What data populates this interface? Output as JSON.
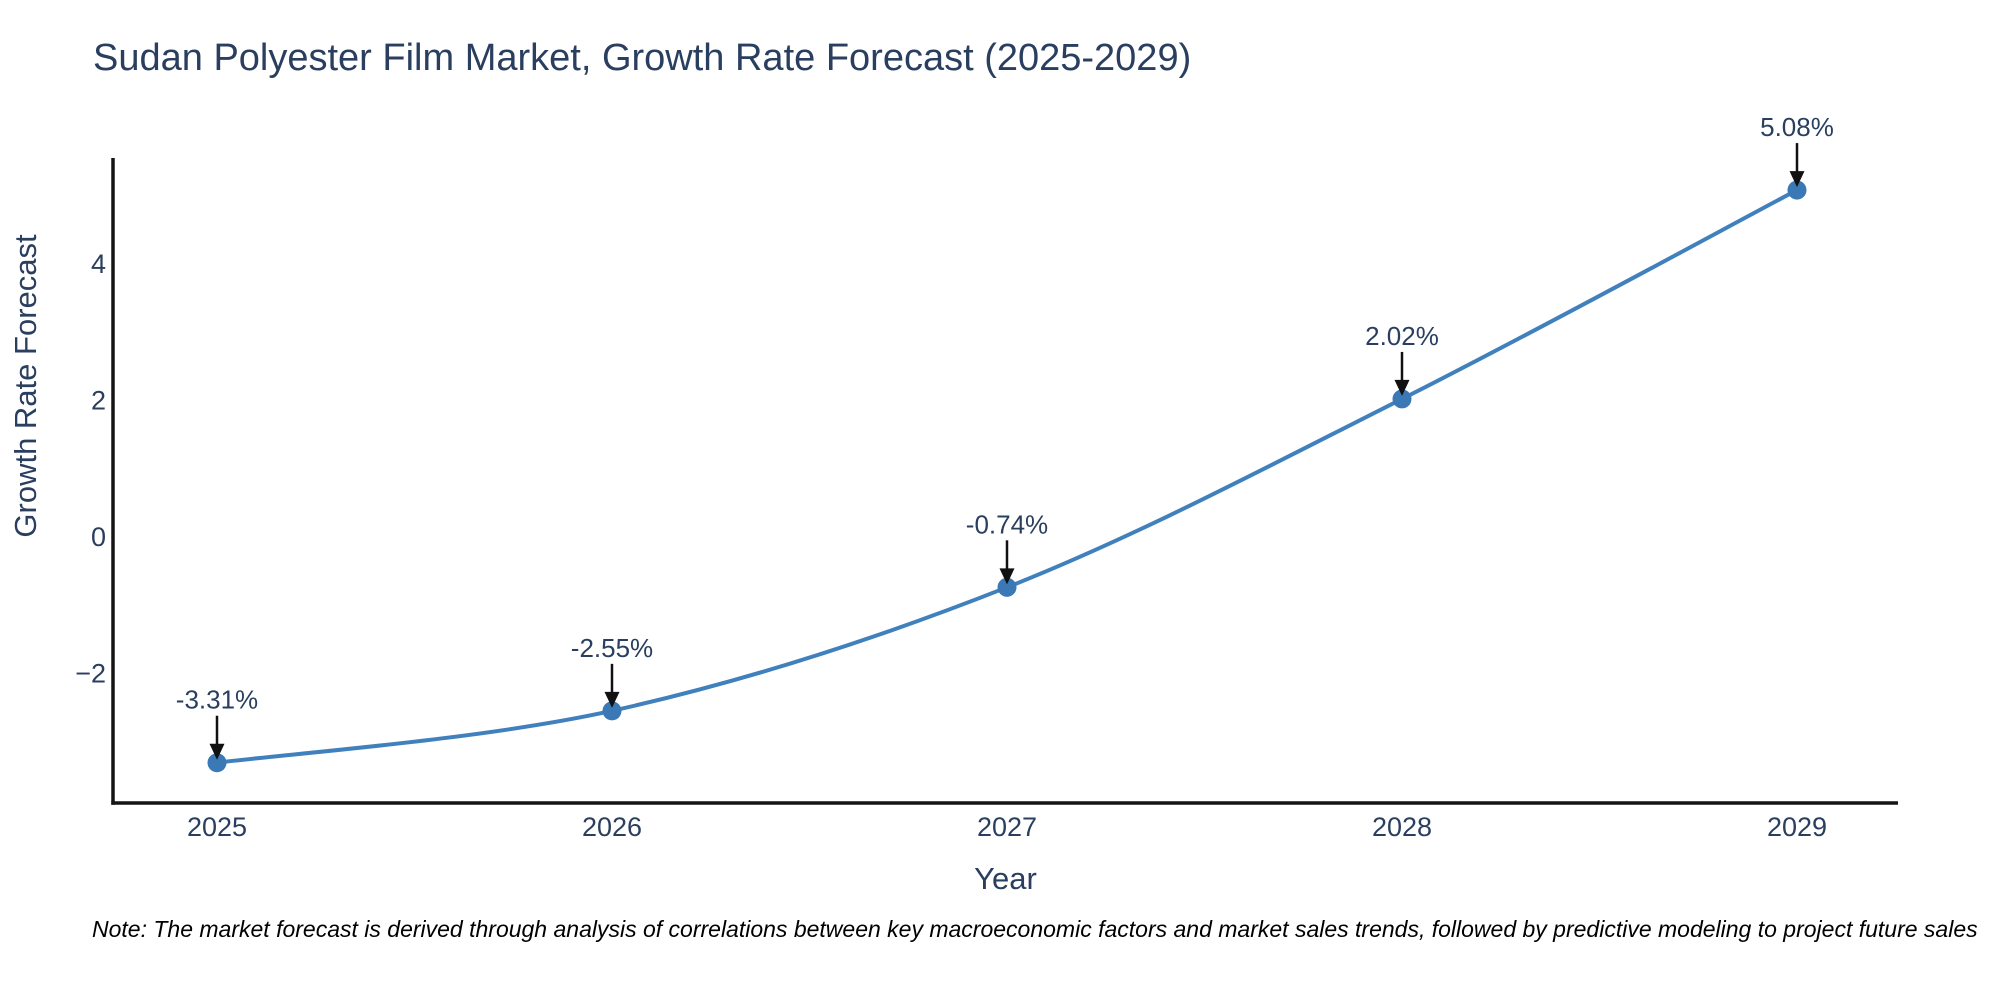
{
  "note": "Note: The market forecast is derived through analysis of correlations between key macroeconomic factors and market sales trends, followed by predictive modeling to project future sales",
  "chart_data": {
    "type": "line",
    "title": "Sudan Polyester Film Market, Growth Rate Forecast (2025-2029)",
    "xlabel": "Year",
    "ylabel": "Growth Rate Forecast",
    "categories": [
      "2025",
      "2026",
      "2027",
      "2028",
      "2029"
    ],
    "values": [
      -3.31,
      -2.55,
      -0.74,
      2.02,
      5.08
    ],
    "point_labels": [
      "-3.31%",
      "-2.55%",
      "-0.74%",
      "2.02%",
      "5.08%"
    ],
    "line_shape": "spline",
    "markers": true,
    "grid": false,
    "legend": "none",
    "ylim": [
      -3.9,
      5.55
    ],
    "y_ticks": [
      -2,
      0,
      2,
      4
    ],
    "y_tick_labels": [
      "−2",
      "0",
      "2",
      "4"
    ],
    "colors": {
      "line": "#4081bd",
      "marker": "#3a79b5",
      "axis_line": "#151515",
      "text": "#2a3f5f",
      "annotation_arrow": "#111111",
      "note_text": "#000000",
      "background": "#ffffff"
    }
  }
}
